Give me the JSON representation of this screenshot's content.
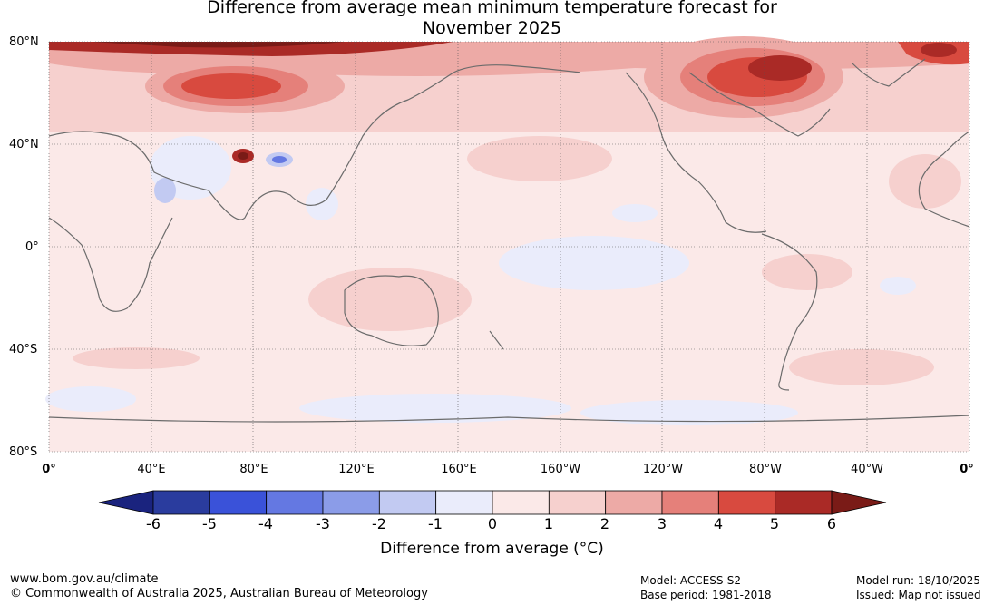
{
  "title": {
    "line1": "Difference from average mean minimum temperature forecast for",
    "line2": "November 2025"
  },
  "map": {
    "latitude_labels": [
      "80°N",
      "40°N",
      "0°",
      "40°S",
      "80°S"
    ],
    "longitude_labels": [
      "0°",
      "40°E",
      "80°E",
      "120°E",
      "160°E",
      "160°W",
      "120°W",
      "80°W",
      "40°W",
      "0°"
    ]
  },
  "colorbar": {
    "ticks": [
      "-6",
      "-5",
      "-4",
      "-3",
      "-2",
      "-1",
      "0",
      "1",
      "2",
      "3",
      "4",
      "5",
      "6"
    ],
    "colors": [
      "#2a3c9e",
      "#3a52d9",
      "#6478e2",
      "#8b9ce8",
      "#c2caf2",
      "#eaecfb",
      "#fbe9e8",
      "#f6d0ce",
      "#edaaa6",
      "#e5807a",
      "#d84a3f",
      "#aa2a26"
    ],
    "under_color": "#1a237e",
    "over_color": "#7a1b17",
    "label": "Difference from average (°C)"
  },
  "footer": {
    "url": "www.bom.gov.au/climate",
    "copyright": "© Commonwealth of Australia 2025, Australian Bureau of Meteorology",
    "model": "Model: ACCESS-S2",
    "base_period": "Base period: 1981-2018",
    "model_run": "Model run: 18/10/2025",
    "issued": "Issued: Map not issued"
  }
}
